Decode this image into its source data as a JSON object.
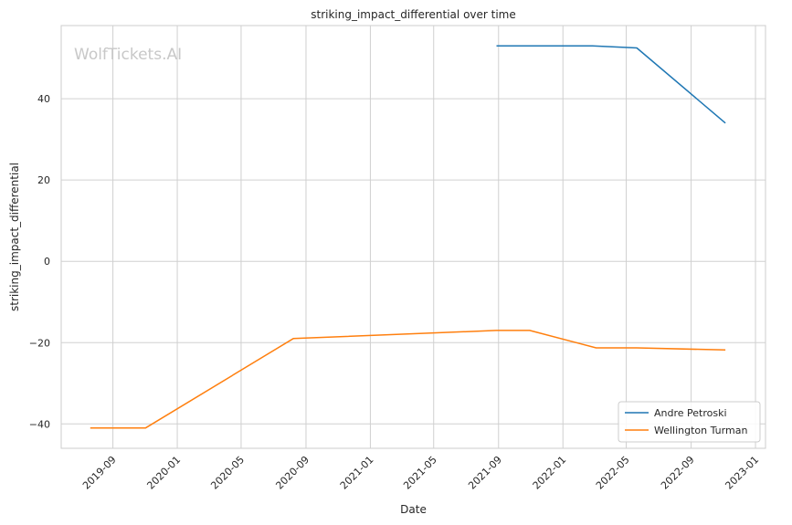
{
  "watermark": "WolfTickets.AI",
  "chart_data": {
    "type": "line",
    "title": "striking_impact_differential over time",
    "xlabel": "Date",
    "ylabel": "striking_impact_differential",
    "x_type": "date",
    "xlim": [
      "2019-05-26",
      "2023-01-20"
    ],
    "ylim": [
      -46,
      58
    ],
    "x_ticks": [
      "2019-09",
      "2020-01",
      "2020-05",
      "2020-09",
      "2021-01",
      "2021-05",
      "2021-09",
      "2022-01",
      "2022-05",
      "2022-09",
      "2023-01"
    ],
    "y_ticks": [
      -40,
      -20,
      0,
      20,
      40
    ],
    "grid": true,
    "legend_position": "lower-right",
    "series": [
      {
        "name": "Andre Petroski",
        "color": "#1f77b4",
        "points": [
          {
            "x": "2021-08-28",
            "y": 53.0
          },
          {
            "x": "2022-02-26",
            "y": 53.0
          },
          {
            "x": "2022-05-21",
            "y": 52.5
          },
          {
            "x": "2022-11-05",
            "y": 34.0
          }
        ]
      },
      {
        "name": "Wellington Turman",
        "color": "#ff7f0e",
        "points": [
          {
            "x": "2019-07-20",
            "y": -41.0
          },
          {
            "x": "2019-11-02",
            "y": -41.0
          },
          {
            "x": "2020-08-08",
            "y": -19.0
          },
          {
            "x": "2021-08-28",
            "y": -17.0
          },
          {
            "x": "2021-10-30",
            "y": -17.0
          },
          {
            "x": "2022-03-05",
            "y": -21.3
          },
          {
            "x": "2022-05-21",
            "y": -21.3
          },
          {
            "x": "2022-11-05",
            "y": -21.8
          }
        ]
      }
    ]
  }
}
